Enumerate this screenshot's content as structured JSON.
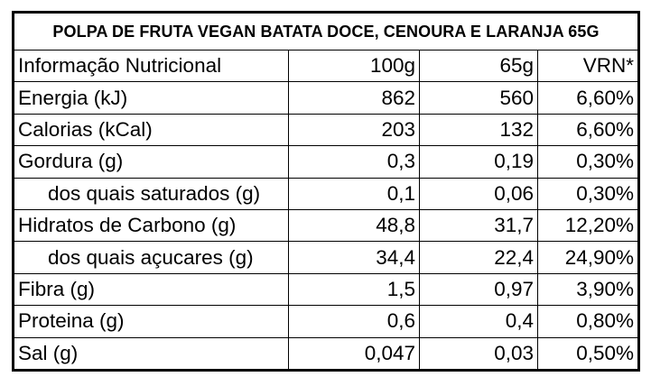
{
  "title": "POLPA DE FRUTA VEGAN BATATA DOCE, CENOURA E LARANJA 65G",
  "header": {
    "label": "Informação Nutricional",
    "col_100g": "100g",
    "col_65g": "65g",
    "col_vrn": "VRN*"
  },
  "rows": [
    {
      "label": "Energia (kJ)",
      "v100": "862",
      "v65": "560",
      "vrn": "6,60%"
    },
    {
      "label": "Calorias (kCal)",
      "v100": "203",
      "v65": "132",
      "vrn": "6,60%"
    },
    {
      "label": "Gordura (g)",
      "v100": "0,3",
      "v65": "0,19",
      "vrn": "0,30%"
    },
    {
      "label": "dos quais saturados (g)",
      "v100": "0,1",
      "v65": "0,06",
      "vrn": "0,30%"
    },
    {
      "label": "Hidratos de Carbono (g)",
      "v100": "48,8",
      "v65": "31,7",
      "vrn": "12,20%"
    },
    {
      "label": "dos quais açucares (g)",
      "v100": "34,4",
      "v65": "22,4",
      "vrn": "24,90%"
    },
    {
      "label": "Fibra (g)",
      "v100": "1,5",
      "v65": "0,97",
      "vrn": "3,90%"
    },
    {
      "label": "Proteina (g)",
      "v100": "0,6",
      "v65": "0,4",
      "vrn": "0,80%"
    },
    {
      "label": "Sal (g)",
      "v100": "0,047",
      "v65": "0,03",
      "vrn": "0,50%"
    }
  ]
}
